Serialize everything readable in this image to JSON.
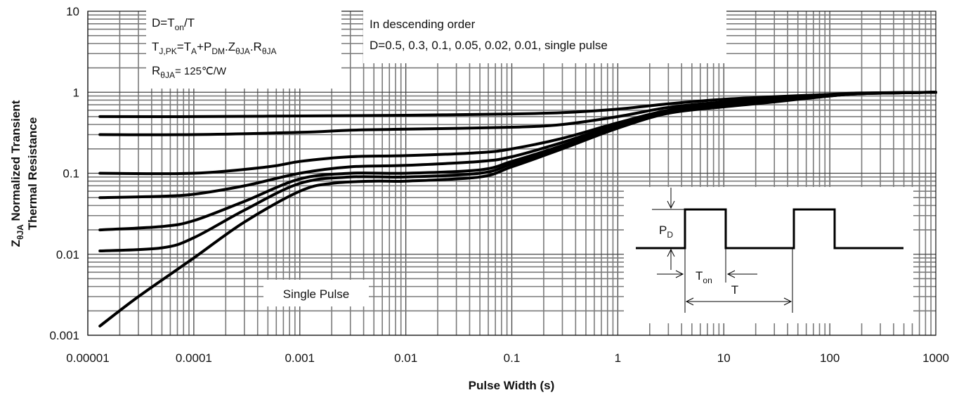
{
  "chart_data": {
    "type": "line",
    "xlabel": "Pulse Width (s)",
    "ylabel_main": "Z",
    "ylabel_sub": "θJA",
    "ylabel_rest": " Normalized Transient",
    "ylabel_line2": "Thermal Resistance",
    "xscale": "log",
    "yscale": "log",
    "xlim": [
      1e-05,
      1000
    ],
    "ylim": [
      0.001,
      10
    ],
    "grid": true,
    "x_ticks": [
      {
        "value": 1e-05,
        "label": "0.00001"
      },
      {
        "value": 0.0001,
        "label": "0.0001"
      },
      {
        "value": 0.001,
        "label": "0.001"
      },
      {
        "value": 0.01,
        "label": "0.01"
      },
      {
        "value": 0.1,
        "label": "0.1"
      },
      {
        "value": 1,
        "label": "1"
      },
      {
        "value": 10,
        "label": "10"
      },
      {
        "value": 100,
        "label": "100"
      },
      {
        "value": 1000,
        "label": "1000"
      }
    ],
    "y_ticks": [
      {
        "value": 0.001,
        "label": "0.001"
      },
      {
        "value": 0.01,
        "label": "0.01"
      },
      {
        "value": 0.1,
        "label": "0.1"
      },
      {
        "value": 1,
        "label": "1"
      },
      {
        "value": 10,
        "label": "10"
      }
    ],
    "series": [
      {
        "name": "D=0.5",
        "points": [
          [
            1.3e-05,
            0.5
          ],
          [
            0.0001,
            0.5
          ],
          [
            0.001,
            0.51
          ],
          [
            0.01,
            0.52
          ],
          [
            0.1,
            0.54
          ],
          [
            0.3,
            0.56
          ],
          [
            1,
            0.62
          ],
          [
            3,
            0.72
          ],
          [
            10,
            0.82
          ],
          [
            30,
            0.88
          ],
          [
            100,
            0.94
          ],
          [
            200,
            0.98
          ],
          [
            1000,
            1.0
          ]
        ]
      },
      {
        "name": "D=0.3",
        "points": [
          [
            1.3e-05,
            0.3
          ],
          [
            0.0001,
            0.3
          ],
          [
            0.001,
            0.32
          ],
          [
            0.003,
            0.34
          ],
          [
            0.01,
            0.35
          ],
          [
            0.1,
            0.37
          ],
          [
            0.3,
            0.4
          ],
          [
            1,
            0.5
          ],
          [
            3,
            0.65
          ],
          [
            10,
            0.76
          ],
          [
            30,
            0.85
          ],
          [
            100,
            0.93
          ],
          [
            200,
            0.97
          ],
          [
            1000,
            1.0
          ]
        ]
      },
      {
        "name": "D=0.1",
        "points": [
          [
            1.3e-05,
            0.1
          ],
          [
            0.0001,
            0.1
          ],
          [
            0.0005,
            0.12
          ],
          [
            0.001,
            0.14
          ],
          [
            0.003,
            0.16
          ],
          [
            0.01,
            0.165
          ],
          [
            0.05,
            0.18
          ],
          [
            0.1,
            0.2
          ],
          [
            0.3,
            0.27
          ],
          [
            1,
            0.42
          ],
          [
            3,
            0.6
          ],
          [
            10,
            0.72
          ],
          [
            30,
            0.82
          ],
          [
            100,
            0.92
          ],
          [
            200,
            0.97
          ],
          [
            1000,
            1.0
          ]
        ]
      },
      {
        "name": "D=0.05",
        "points": [
          [
            1.3e-05,
            0.05
          ],
          [
            5e-05,
            0.052
          ],
          [
            0.0001,
            0.055
          ],
          [
            0.0003,
            0.07
          ],
          [
            0.001,
            0.1
          ],
          [
            0.003,
            0.12
          ],
          [
            0.01,
            0.125
          ],
          [
            0.05,
            0.14
          ],
          [
            0.1,
            0.16
          ],
          [
            0.3,
            0.24
          ],
          [
            1,
            0.4
          ],
          [
            3,
            0.58
          ],
          [
            10,
            0.7
          ],
          [
            30,
            0.8
          ],
          [
            100,
            0.91
          ],
          [
            200,
            0.97
          ],
          [
            1000,
            1.0
          ]
        ]
      },
      {
        "name": "D=0.02",
        "points": [
          [
            1.3e-05,
            0.02
          ],
          [
            5e-05,
            0.022
          ],
          [
            0.0001,
            0.026
          ],
          [
            0.0003,
            0.045
          ],
          [
            0.001,
            0.085
          ],
          [
            0.003,
            0.1
          ],
          [
            0.01,
            0.1
          ],
          [
            0.05,
            0.11
          ],
          [
            0.1,
            0.14
          ],
          [
            0.3,
            0.22
          ],
          [
            1,
            0.38
          ],
          [
            3,
            0.57
          ],
          [
            10,
            0.68
          ],
          [
            30,
            0.78
          ],
          [
            100,
            0.9
          ],
          [
            200,
            0.96
          ],
          [
            1000,
            1.0
          ]
        ]
      },
      {
        "name": "D=0.01",
        "points": [
          [
            1.3e-05,
            0.011
          ],
          [
            5e-05,
            0.012
          ],
          [
            0.0001,
            0.016
          ],
          [
            0.0003,
            0.035
          ],
          [
            0.001,
            0.075
          ],
          [
            0.003,
            0.09
          ],
          [
            0.01,
            0.09
          ],
          [
            0.05,
            0.1
          ],
          [
            0.1,
            0.13
          ],
          [
            0.3,
            0.21
          ],
          [
            1,
            0.37
          ],
          [
            3,
            0.56
          ],
          [
            10,
            0.67
          ],
          [
            30,
            0.77
          ],
          [
            100,
            0.9
          ],
          [
            200,
            0.96
          ],
          [
            1000,
            1.0
          ]
        ]
      },
      {
        "name": "single pulse",
        "points": [
          [
            1.3e-05,
            0.0013
          ],
          [
            3e-05,
            0.003
          ],
          [
            0.0001,
            0.009
          ],
          [
            0.0003,
            0.025
          ],
          [
            0.001,
            0.06
          ],
          [
            0.002,
            0.075
          ],
          [
            0.005,
            0.08
          ],
          [
            0.01,
            0.08
          ],
          [
            0.05,
            0.09
          ],
          [
            0.1,
            0.12
          ],
          [
            0.3,
            0.2
          ],
          [
            1,
            0.36
          ],
          [
            3,
            0.55
          ],
          [
            10,
            0.66
          ],
          [
            30,
            0.76
          ],
          [
            100,
            0.9
          ],
          [
            200,
            0.96
          ],
          [
            1000,
            1.0
          ]
        ]
      }
    ]
  },
  "annotations": {
    "box1": {
      "line1_pre": "D=T",
      "line1_sub": "on",
      "line1_post": "/T",
      "line2_a": "T",
      "line2_a_sub": "J,PK",
      "line2_b": "=T",
      "line2_b_sub": "A",
      "line2_c": "+P",
      "line2_c_sub": "DM",
      "line2_d": ".Z",
      "line2_d_sub": "θJA",
      "line2_e": ".R",
      "line2_e_sub": "θJA",
      "line3_a": "R",
      "line3_a_sub": "θJA",
      "line3_b": "= 125℃/W"
    },
    "box2": {
      "line1": "In descending order",
      "line2": "D=0.5, 0.3, 0.1, 0.05, 0.02, 0.01, single pulse"
    },
    "single_pulse_label": "Single Pulse",
    "inset": {
      "pd_main": "P",
      "pd_sub": "D",
      "ton_main": "T",
      "ton_sub": "on",
      "t_label": "T"
    }
  }
}
